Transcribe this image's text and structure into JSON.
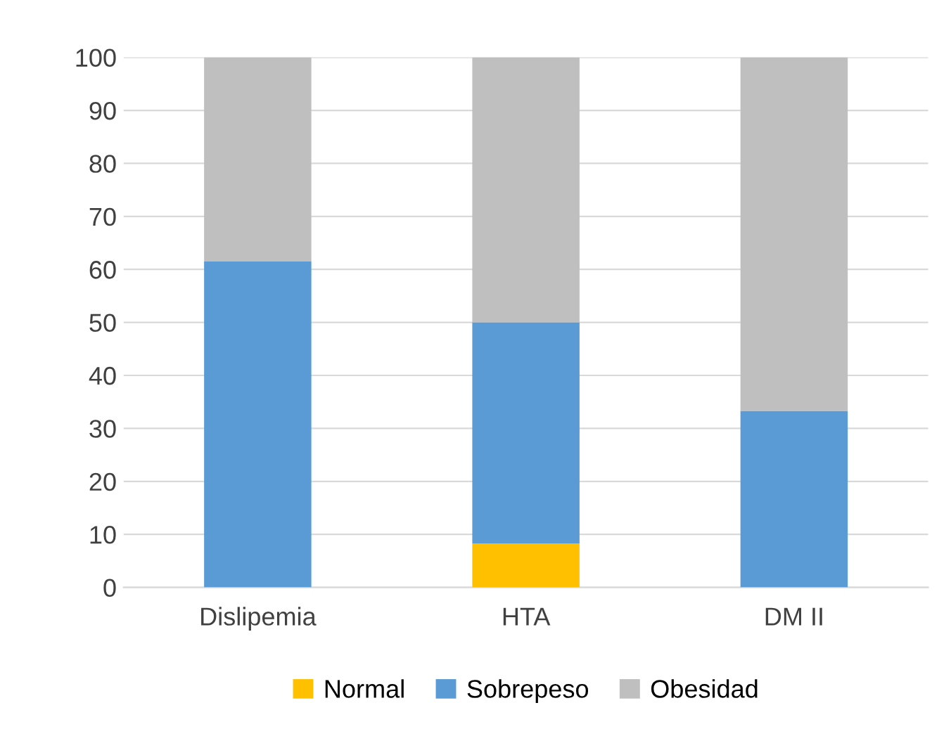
{
  "chart_data": {
    "type": "bar",
    "stacked": true,
    "categories": [
      "Dislipemia",
      "HTA",
      "DM II"
    ],
    "series": [
      {
        "name": "Normal",
        "color": "#ffc000",
        "values": [
          0,
          8.3,
          0
        ]
      },
      {
        "name": "Sobrepeso",
        "color": "#5b9bd5",
        "values": [
          61.5,
          41.7,
          33.3
        ]
      },
      {
        "name": "Obesidad",
        "color": "#bfbfbf",
        "values": [
          38.5,
          50,
          66.7
        ]
      }
    ],
    "ylim": [
      0,
      100
    ],
    "yticks": [
      0,
      10,
      20,
      30,
      40,
      50,
      60,
      70,
      80,
      90,
      100
    ],
    "grid": "y",
    "legend": "bottom"
  }
}
